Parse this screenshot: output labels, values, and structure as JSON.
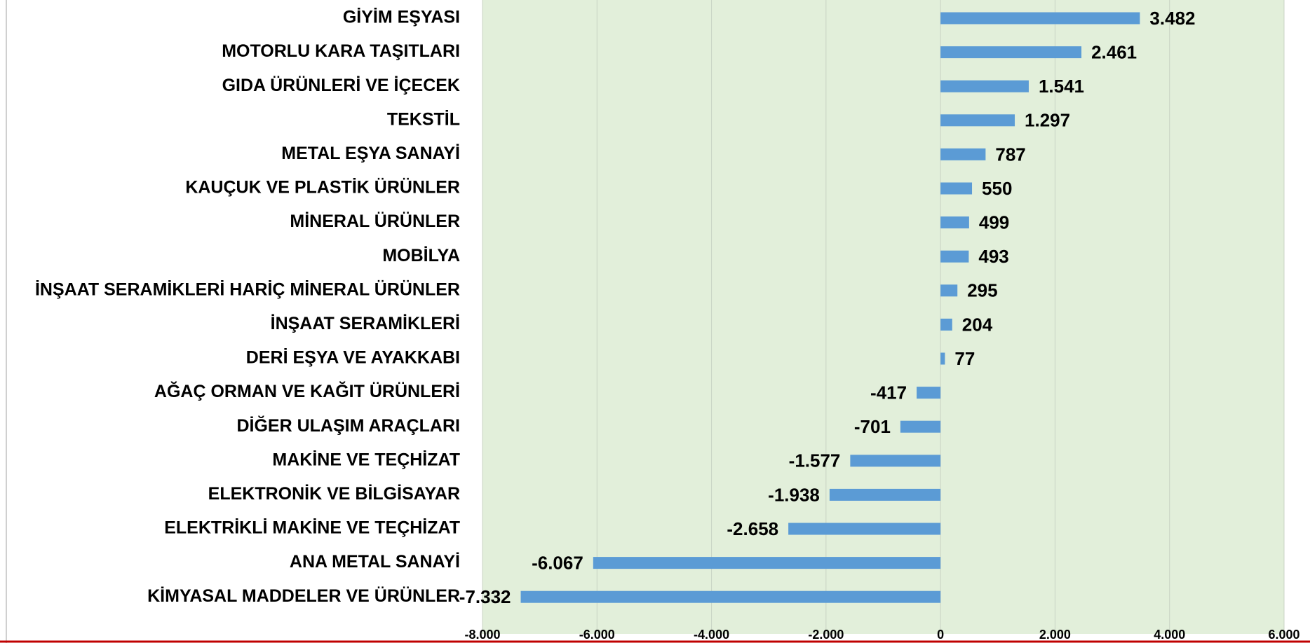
{
  "chart_data": {
    "type": "barh",
    "categories": [
      "GİYİM EŞYASI",
      "MOTORLU KARA TAŞITLARI",
      "GIDA ÜRÜNLERİ VE İÇECEK",
      "TEKSTİL",
      "METAL EŞYA SANAYİ",
      "KAUÇUK VE PLASTİK ÜRÜNLER",
      "MİNERAL ÜRÜNLER",
      "MOBİLYA",
      "İNŞAAT SERAMİKLERİ HARİÇ MİNERAL ÜRÜNLER",
      "İNŞAAT SERAMİKLERİ",
      "DERİ EŞYA VE AYAKKABI",
      "AĞAÇ ORMAN VE KAĞIT ÜRÜNLERİ",
      "DİĞER ULAŞIM ARAÇLARI",
      "MAKİNE VE TEÇHİZAT",
      "ELEKTRONİK VE BİLGİSAYAR",
      "ELEKTRİKLİ MAKİNE VE TEÇHİZAT",
      "ANA METAL SANAYİ",
      "KİMYASAL MADDELER VE ÜRÜNLER"
    ],
    "values": [
      3482,
      2461,
      1541,
      1297,
      787,
      550,
      499,
      493,
      295,
      204,
      77,
      -417,
      -701,
      -1577,
      -1938,
      -2658,
      -6067,
      -7332
    ],
    "value_labels": [
      "3.482",
      "2.461",
      "1.541",
      "1.297",
      "787",
      "550",
      "499",
      "493",
      "295",
      "204",
      "77",
      "-417",
      "-701",
      "-1.577",
      "-1.938",
      "-2.658",
      "-6.067",
      "-7.332"
    ],
    "color": "#5b9bd5",
    "xlim": [
      -8000,
      6000
    ],
    "xticks": [
      {
        "value": -8000,
        "label": "-8.000"
      },
      {
        "value": -6000,
        "label": "-6.000"
      },
      {
        "value": -4000,
        "label": "-4.000"
      },
      {
        "value": -2000,
        "label": "-2.000"
      },
      0,
      {
        "value": 2000,
        "label": "2.000"
      },
      {
        "value": 4000,
        "label": "4.000"
      },
      {
        "value": 6000,
        "label": "6.000"
      }
    ],
    "grid": true
  }
}
